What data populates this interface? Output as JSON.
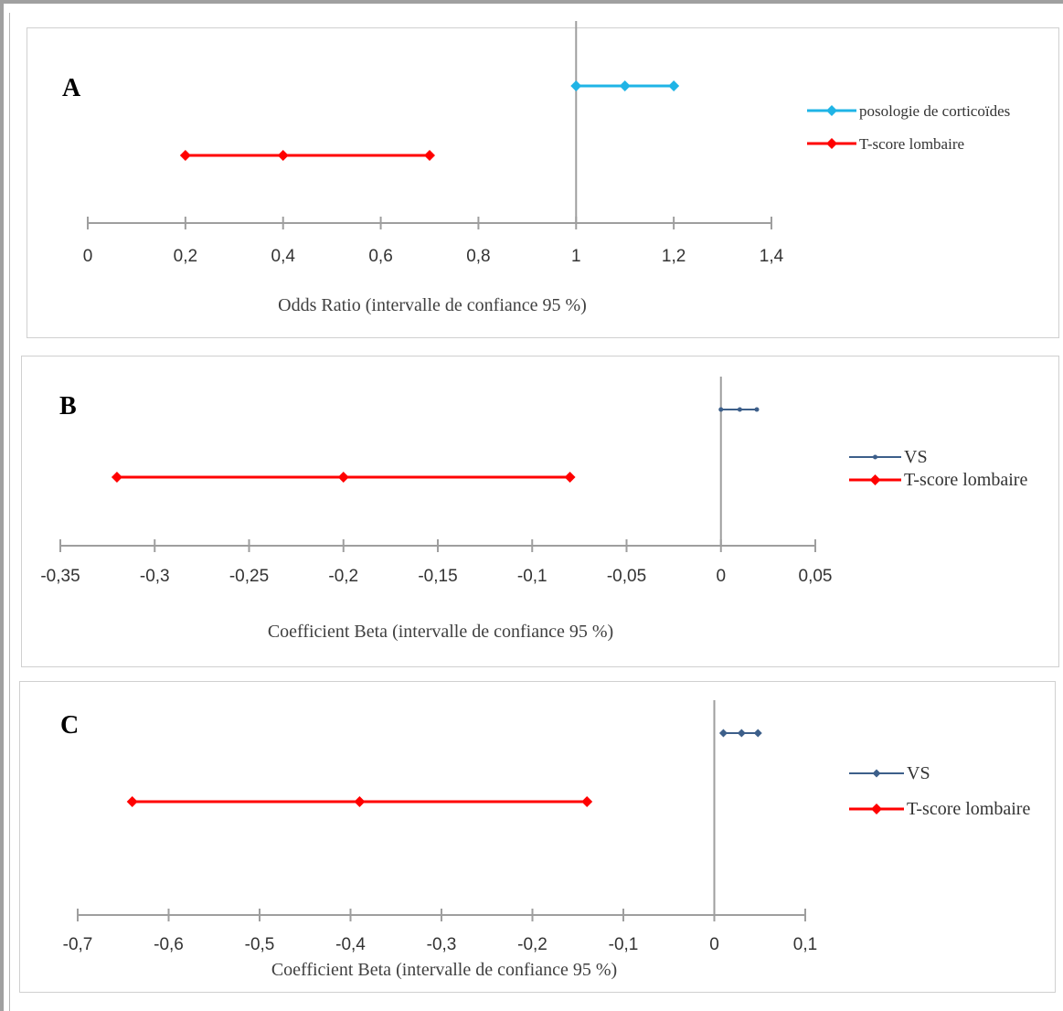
{
  "chart_data": [
    {
      "type": "scatter",
      "panel_label": "A",
      "xlabel": "Odds Ratio (intervalle de confiance 95 %)",
      "xlim": [
        0,
        1.4
      ],
      "xticks": [
        0,
        0.2,
        0.4,
        0.6,
        0.8,
        1,
        1.2,
        1.4
      ],
      "xtick_labels": [
        "0",
        "0,2",
        "0,4",
        "0,6",
        "0,8",
        "1",
        "1,2",
        "1,4"
      ],
      "reference_line": 1,
      "legend_position": "right",
      "series": [
        {
          "name": "posologie de corticoïdes",
          "color": "#1fb4e6",
          "marker": "diamond",
          "row": 1,
          "values": [
            1,
            1.1,
            1.2
          ]
        },
        {
          "name": "T-score lombaire",
          "color": "#ff0000",
          "marker": "diamond",
          "row": 2,
          "values": [
            0.2,
            0.4,
            0.7
          ]
        }
      ]
    },
    {
      "type": "scatter",
      "panel_label": "B",
      "xlabel": "Coefficient Beta (intervalle de confiance 95 %)",
      "xlim": [
        -0.35,
        0.05
      ],
      "xticks": [
        -0.35,
        -0.3,
        -0.25,
        -0.2,
        -0.15,
        -0.1,
        -0.05,
        0,
        0.05
      ],
      "xtick_labels": [
        "-0,35",
        "-0,3",
        "-0,25",
        "-0,2",
        "-0,15",
        "-0,1",
        "-0,05",
        "0",
        "0,05"
      ],
      "reference_line": 0,
      "legend_position": "right",
      "series": [
        {
          "name": "VS",
          "color": "#3d5f8a",
          "marker": "dot",
          "row": 1,
          "values": [
            0,
            0.01,
            0.019
          ]
        },
        {
          "name": "T-score lombaire",
          "color": "#ff0000",
          "marker": "diamond",
          "row": 2,
          "values": [
            -0.32,
            -0.2,
            -0.08
          ]
        }
      ]
    },
    {
      "type": "scatter",
      "panel_label": "C",
      "xlabel": "Coefficient Beta (intervalle de confiance 95 %)",
      "xlim": [
        -0.7,
        0.1
      ],
      "xticks": [
        -0.7,
        -0.6,
        -0.5,
        -0.4,
        -0.3,
        -0.2,
        -0.1,
        0,
        0.1
      ],
      "xtick_labels": [
        "-0,7",
        "-0,6",
        "-0,5",
        "-0,4",
        "-0,3",
        "-0,2",
        "-0,1",
        "0",
        "0,1"
      ],
      "reference_line": 0,
      "legend_position": "right",
      "series": [
        {
          "name": "VS",
          "color": "#3d5f8a",
          "marker": "diamond-small",
          "row": 1,
          "values": [
            0.01,
            0.03,
            0.048
          ]
        },
        {
          "name": "T-score lombaire",
          "color": "#ff0000",
          "marker": "diamond",
          "row": 2,
          "values": [
            -0.64,
            -0.39,
            -0.14
          ]
        }
      ]
    }
  ]
}
